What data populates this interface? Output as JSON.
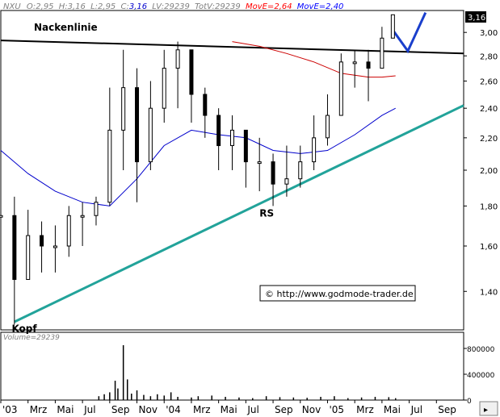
{
  "chart_data": {
    "type": "candlestick",
    "header": {
      "symbol": "NXU",
      "open_label": "O:",
      "open": "2,95",
      "high_label": "H:",
      "high": "3,16",
      "low_label": "L:",
      "low": "2,95",
      "close_label": "C:",
      "close": "3,16",
      "lv_label": "LV:",
      "lv": "29239",
      "totv_label": "TotV:",
      "totv": "29239",
      "mov1_label": "MovE=",
      "mov1": "2,64",
      "mov1_color": "#ff0000",
      "mov2_label": "MovE=",
      "mov2": "2,40",
      "mov2_color": "#0000ff"
    },
    "last_price_tag": "3,16",
    "y_scale": "log",
    "ylim": [
      1.25,
      3.2
    ],
    "y_ticks": [
      "1,40",
      "1,60",
      "1,80",
      "2,00",
      "2,20",
      "2,40",
      "2,60",
      "2,80",
      "3,00"
    ],
    "y_tick_values": [
      1.4,
      1.6,
      1.8,
      2.0,
      2.2,
      2.4,
      2.6,
      2.8,
      3.0
    ],
    "x_labels": [
      "'03",
      "Mrz",
      "Mai",
      "Jul",
      "Sep",
      "Nov",
      "'04",
      "Mrz",
      "Mai",
      "Jul",
      "Sep",
      "Nov",
      "'05",
      "Mrz",
      "Mai",
      "Jul",
      "Sep"
    ],
    "x_label_months": [
      0,
      2,
      4,
      6,
      8,
      10,
      12,
      14,
      16,
      18,
      20,
      22,
      24,
      26,
      28,
      30,
      32
    ],
    "x_range_months": [
      0,
      34
    ],
    "month_label_desc": "months since Jan 2003",
    "series_price_monthly": {
      "months": [
        0,
        1,
        2,
        3,
        4,
        5,
        6,
        7,
        8,
        9,
        10,
        11,
        12,
        13,
        14,
        15,
        16,
        17,
        18,
        19,
        20,
        21,
        22,
        23,
        24,
        25,
        26,
        27,
        28,
        28.8
      ],
      "close": [
        1.75,
        1.45,
        1.65,
        1.6,
        1.6,
        1.75,
        1.75,
        1.82,
        2.25,
        2.55,
        2.05,
        2.4,
        2.7,
        2.85,
        2.5,
        2.35,
        2.15,
        2.25,
        2.05,
        2.05,
        1.92,
        1.95,
        2.05,
        2.2,
        2.35,
        2.75,
        2.75,
        2.7,
        2.95,
        3.16
      ],
      "high": [
        1.85,
        1.85,
        1.78,
        1.72,
        1.7,
        1.8,
        1.82,
        1.85,
        2.55,
        2.85,
        2.7,
        2.6,
        2.85,
        2.92,
        2.75,
        2.55,
        2.4,
        2.35,
        2.25,
        2.2,
        2.1,
        2.15,
        2.15,
        2.35,
        2.5,
        2.82,
        2.85,
        2.85,
        3.05,
        3.16
      ],
      "low": [
        1.55,
        1.27,
        1.5,
        1.48,
        1.48,
        1.55,
        1.6,
        1.7,
        1.8,
        2.0,
        1.82,
        2.0,
        2.3,
        2.4,
        2.3,
        2.2,
        2.0,
        2.0,
        1.9,
        1.88,
        1.8,
        1.85,
        1.9,
        2.0,
        2.15,
        2.4,
        2.55,
        2.45,
        2.7,
        2.95
      ]
    },
    "ema_red": {
      "name": "MovE=2,64",
      "months": [
        17,
        19,
        21,
        23,
        25,
        27,
        28,
        29
      ],
      "values": [
        2.92,
        2.88,
        2.82,
        2.75,
        2.66,
        2.63,
        2.63,
        2.64
      ],
      "color": "#cc0000"
    },
    "ema_blue": {
      "name": "MovE=2,40",
      "months": [
        0,
        2,
        4,
        6,
        8,
        10,
        12,
        14,
        16,
        18,
        20,
        22,
        24,
        26,
        28,
        29
      ],
      "values": [
        2.12,
        1.98,
        1.88,
        1.82,
        1.8,
        1.95,
        2.15,
        2.25,
        2.22,
        2.2,
        2.12,
        2.1,
        2.12,
        2.22,
        2.35,
        2.4
      ],
      "color": "#0000cc"
    },
    "neckline": {
      "label": "Nackenlinie",
      "from": [
        0,
        2.93
      ],
      "to": [
        34,
        2.82
      ],
      "color": "#000000"
    },
    "trendline": {
      "from": [
        1.0,
        1.28
      ],
      "to": [
        34,
        2.42
      ],
      "color": "#22a39a"
    },
    "v_marker": {
      "months": [
        28.8,
        29.9,
        31.2
      ],
      "values": [
        3.02,
        2.84,
        3.18
      ],
      "color": "#1a3fcc"
    },
    "annotations": [
      {
        "text": "Kopf",
        "month": 0.8,
        "value": 1.26
      },
      {
        "text": "RS",
        "month": 19.0,
        "value": 1.77
      }
    ],
    "copyright": "© http://www.godmode-trader.de",
    "volume": {
      "label": "Volume=29239",
      "y_ticks": [
        "800000",
        "400000",
        "0"
      ],
      "y_tick_values": [
        800000,
        400000,
        0
      ],
      "ymax": 1000000,
      "months": [
        7.2,
        7.6,
        8.0,
        8.4,
        8.6,
        9.0,
        9.3,
        9.6,
        10.0,
        10.5,
        11.0,
        11.5,
        12.0,
        12.5,
        13.0,
        14.0,
        14.5,
        15.5,
        16.5,
        17.5,
        18.5,
        19.5,
        20.5,
        21.5,
        22.5,
        23.5,
        24.5,
        25.5,
        26.5,
        27.5,
        28.5,
        29.0
      ],
      "values": [
        60000,
        90000,
        120000,
        300000,
        180000,
        850000,
        320000,
        100000,
        150000,
        80000,
        60000,
        90000,
        70000,
        120000,
        50000,
        40000,
        60000,
        70000,
        50000,
        40000,
        30000,
        60000,
        45000,
        40000,
        35000,
        50000,
        60000,
        30000,
        40000,
        50000,
        45000,
        29239
      ],
      "color": "#000000"
    }
  }
}
